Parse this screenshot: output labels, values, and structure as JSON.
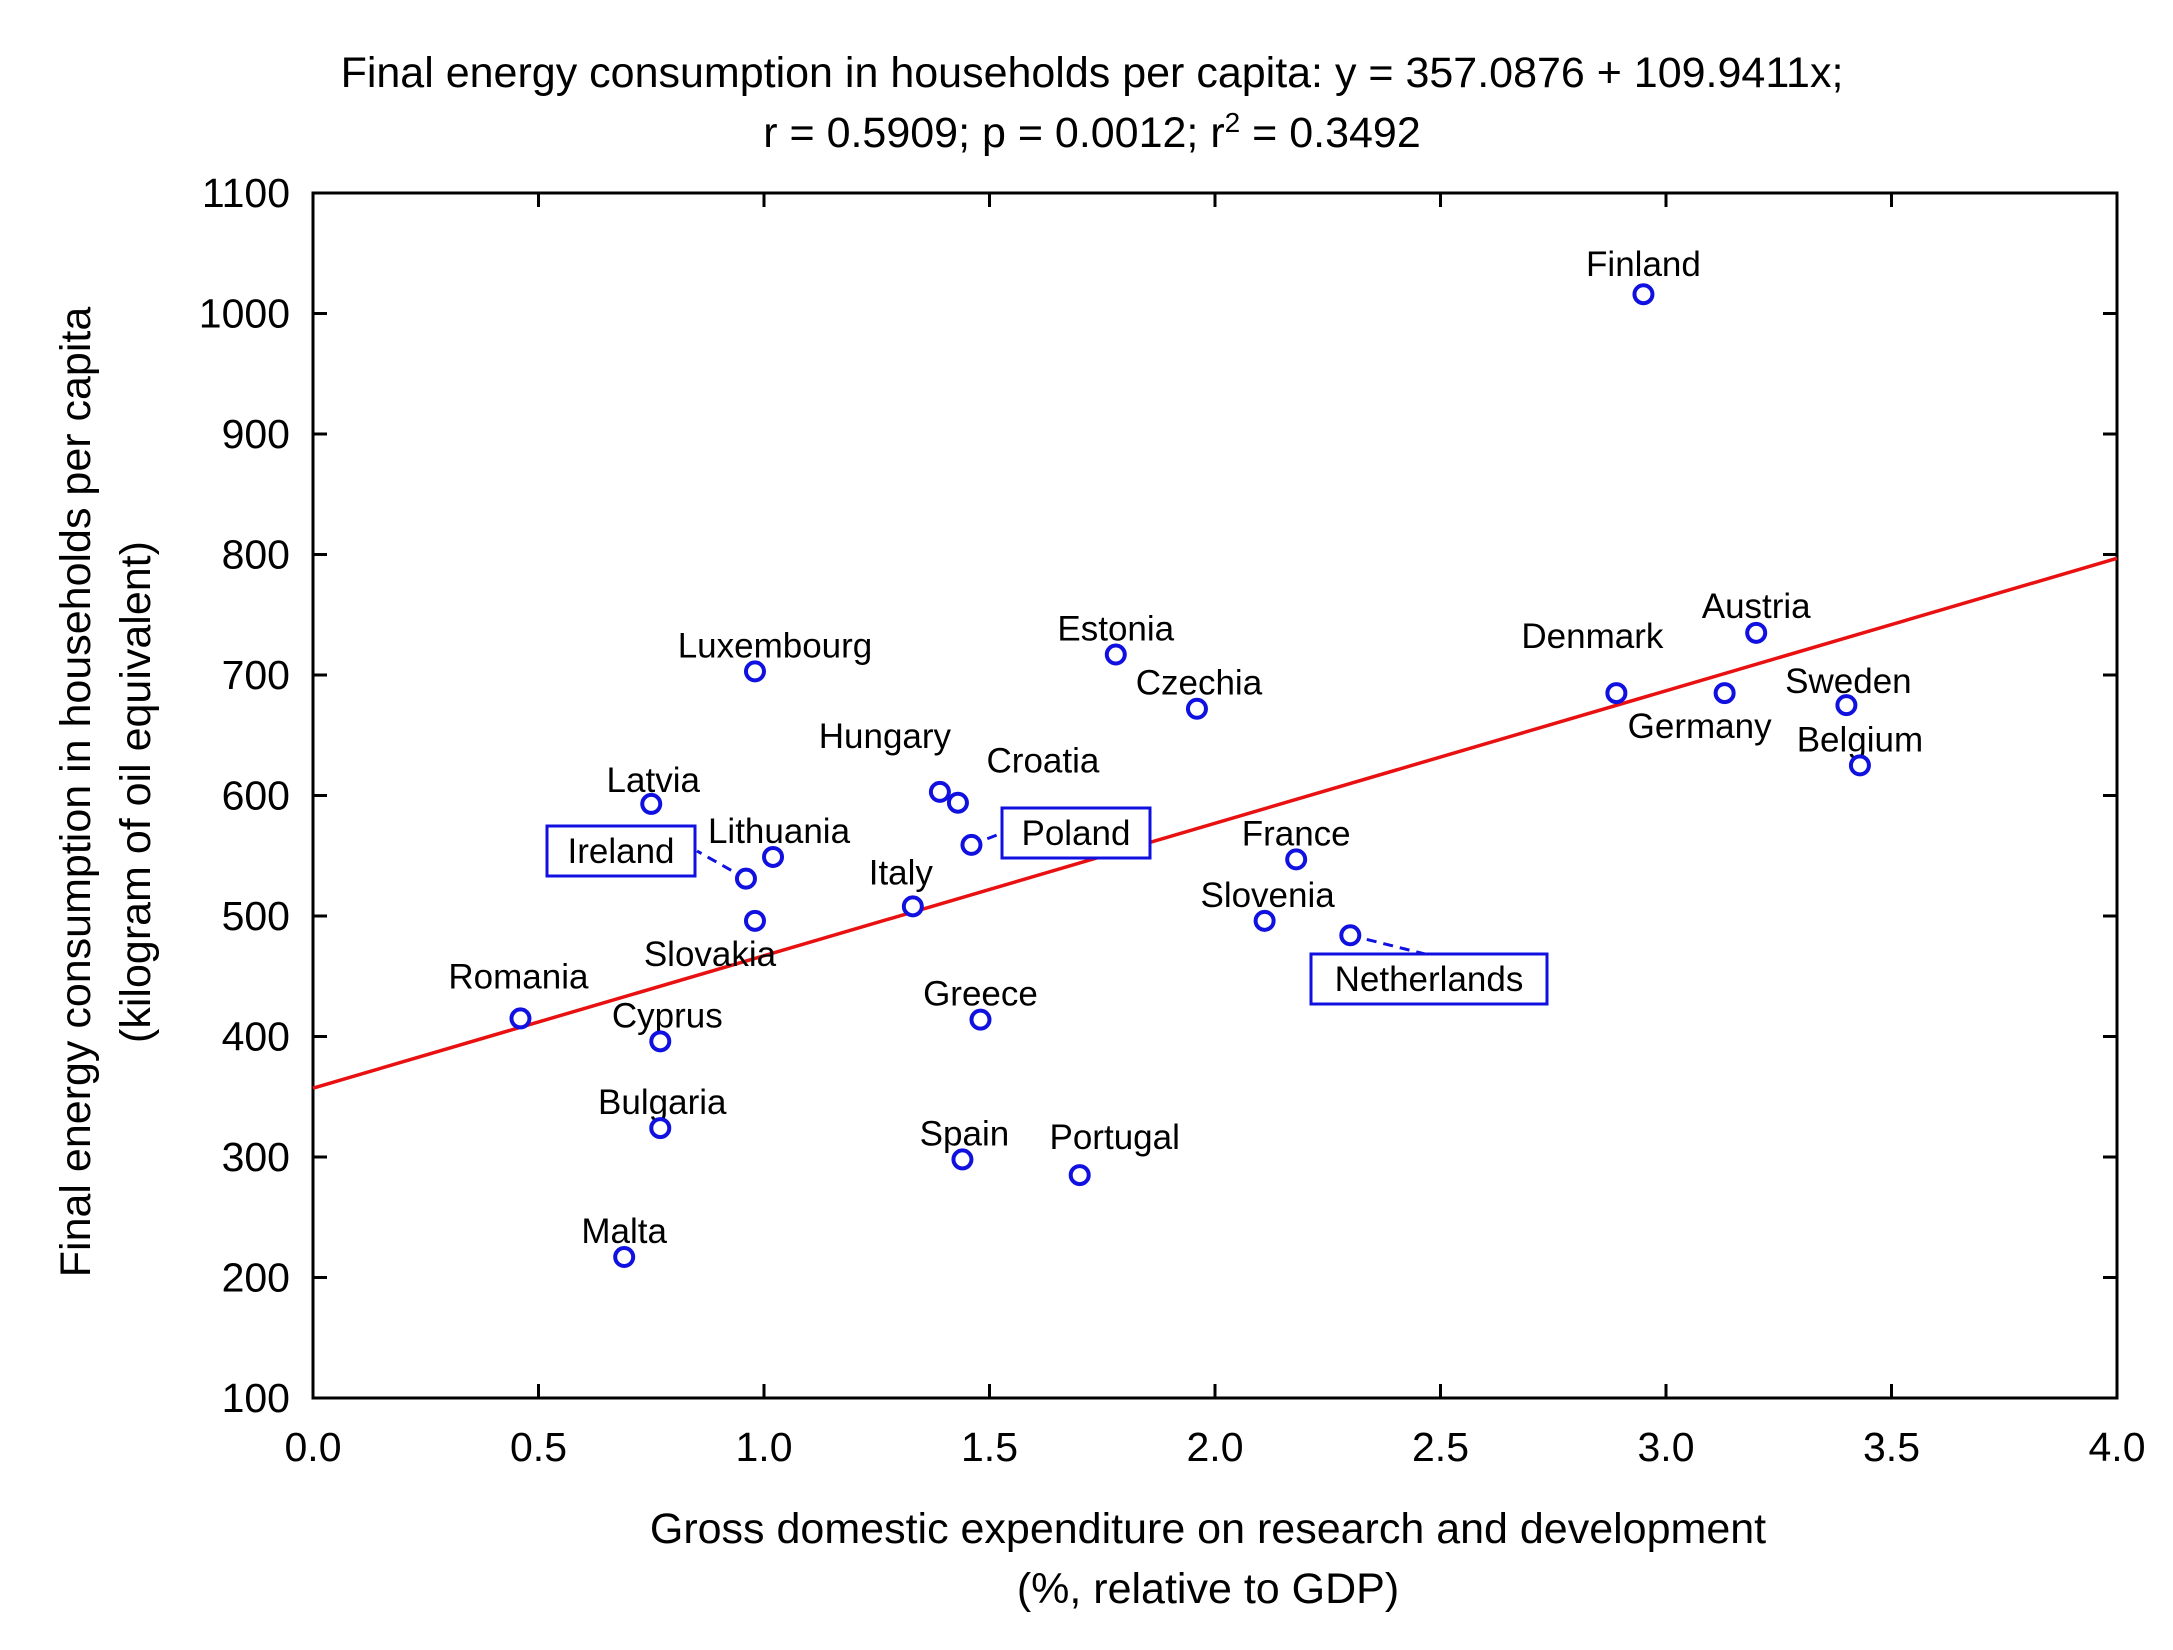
{
  "chart_data": {
    "type": "scatter",
    "title_line1": "Final energy consumption in households per capita:   y = 357.0876 + 109.9411x;",
    "title_line2": "r = 0.5909; p = 0.0012; r",
    "title_line2_sup": "2",
    "title_line2_end": " = 0.3492",
    "xlabel_line1": "Gross domestic expenditure on research and development",
    "xlabel_line2": "(%, relative to GDP)",
    "ylabel_line1": "Final energy consumption in households per capita",
    "ylabel_line2": "(kilogram of oil equivalent)",
    "xlim": [
      0.0,
      4.0
    ],
    "ylim": [
      100,
      1100
    ],
    "xticks": [
      0.0,
      0.5,
      1.0,
      1.5,
      2.0,
      2.5,
      3.0,
      3.5,
      4.0
    ],
    "xtick_labels": [
      "0.0",
      "0.5",
      "1.0",
      "1.5",
      "2.0",
      "2.5",
      "3.0",
      "3.5",
      "4.0"
    ],
    "yticks": [
      100,
      200,
      300,
      400,
      500,
      600,
      700,
      800,
      900,
      1000,
      1100
    ],
    "ytick_labels": [
      "100",
      "200",
      "300",
      "400",
      "500",
      "600",
      "700",
      "800",
      "900",
      "1000",
      "1100"
    ],
    "regression": {
      "intercept": 357.0876,
      "slope": 109.9411,
      "color": "#e81010"
    },
    "grid": false,
    "marker_color": "#1010e0",
    "points": [
      {
        "name": "Finland",
        "x": 2.95,
        "y": 1016
      },
      {
        "name": "Austria",
        "x": 3.2,
        "y": 735
      },
      {
        "name": "Denmark",
        "x": 2.89,
        "y": 685
      },
      {
        "name": "Germany",
        "x": 3.13,
        "y": 685
      },
      {
        "name": "Sweden",
        "x": 3.4,
        "y": 675
      },
      {
        "name": "Belgium",
        "x": 3.43,
        "y": 625
      },
      {
        "name": "Estonia",
        "x": 1.78,
        "y": 717
      },
      {
        "name": "Czechia",
        "x": 1.96,
        "y": 672
      },
      {
        "name": "Luxembourg",
        "x": 0.98,
        "y": 703
      },
      {
        "name": "Hungary",
        "x": 1.39,
        "y": 603
      },
      {
        "name": "Croatia",
        "x": 1.43,
        "y": 594
      },
      {
        "name": "Poland",
        "x": 1.46,
        "y": 559
      },
      {
        "name": "Latvia",
        "x": 0.75,
        "y": 593
      },
      {
        "name": "Lithuania",
        "x": 1.02,
        "y": 549
      },
      {
        "name": "Ireland",
        "x": 0.96,
        "y": 531
      },
      {
        "name": "Slovakia",
        "x": 0.98,
        "y": 496
      },
      {
        "name": "Italy",
        "x": 1.33,
        "y": 508
      },
      {
        "name": "France",
        "x": 2.18,
        "y": 547
      },
      {
        "name": "Slovenia",
        "x": 2.11,
        "y": 496
      },
      {
        "name": "Netherlands",
        "x": 2.3,
        "y": 484
      },
      {
        "name": "Romania",
        "x": 0.46,
        "y": 415
      },
      {
        "name": "Cyprus",
        "x": 0.77,
        "y": 396
      },
      {
        "name": "Greece",
        "x": 1.48,
        "y": 414
      },
      {
        "name": "Bulgaria",
        "x": 0.77,
        "y": 324
      },
      {
        "name": "Spain",
        "x": 1.44,
        "y": 298
      },
      {
        "name": "Portugal",
        "x": 1.7,
        "y": 285
      },
      {
        "name": "Malta",
        "x": 0.69,
        "y": 217
      }
    ]
  }
}
